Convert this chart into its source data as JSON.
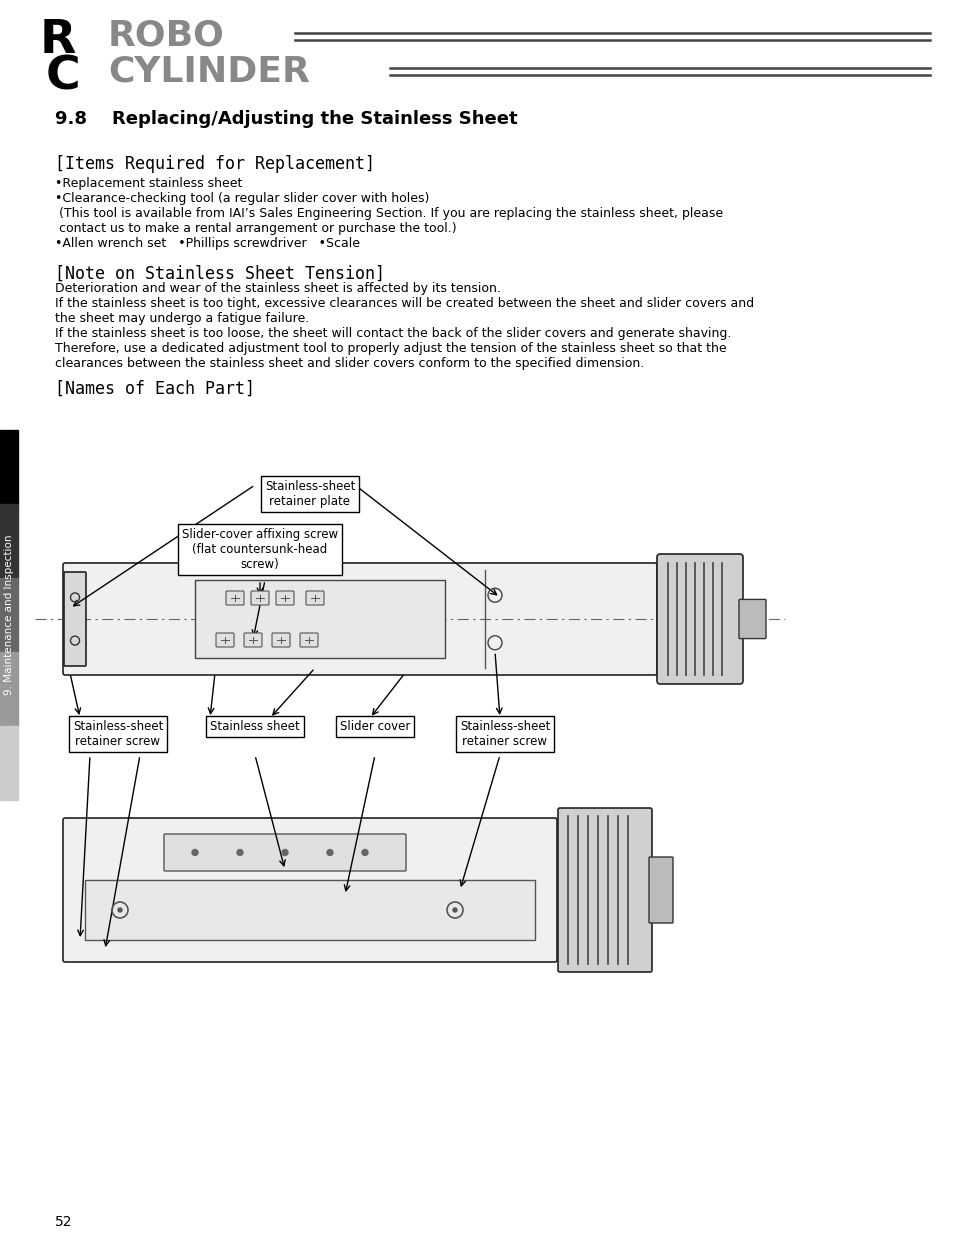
{
  "bg_color": "#ffffff",
  "title_section": "9.8    Replacing/Adjusting the Stainless Sheet",
  "items_header": "[Items Required for Replacement]",
  "items_bullets": [
    "•Replacement stainless sheet",
    "•Clearance-checking tool (a regular slider cover with holes)",
    " (This tool is available from IAI’s Sales Engineering Section. If you are replacing the stainless sheet, please",
    " contact us to make a rental arrangement or purchase the tool.)",
    "•Allen wrench set   •Phillips screwdriver   •Scale"
  ],
  "note_header": "[Note on Stainless Sheet Tension]",
  "note_lines": [
    "Deterioration and wear of the stainless sheet is affected by its tension.",
    "If the stainless sheet is too tight, excessive clearances will be created between the sheet and slider covers and",
    "the sheet may undergo a fatigue failure.",
    "If the stainless sheet is too loose, the sheet will contact the back of the slider covers and generate shaving.",
    "Therefore, use a dedicated adjustment tool to properly adjust the tension of the stainless sheet so that the",
    "clearances between the stainless sheet and slider covers conform to the specified dimension."
  ],
  "names_header": "[Names of Each Part]",
  "page_number": "52",
  "sidebar_text": "9. Maintenance and Inspection",
  "label_retainer_plate": "Stainless-sheet\nretainer plate",
  "label_affixing_screw": "Slider-cover affixing screw\n(flat countersunk-head\nscrew)",
  "label_left_screw": "Stainless-sheet\nretainer screw",
  "label_stainless_sheet": "Stainless sheet",
  "label_slider_cover": "Slider cover",
  "label_right_screw": "Stainless-sheet\nretainer screw"
}
